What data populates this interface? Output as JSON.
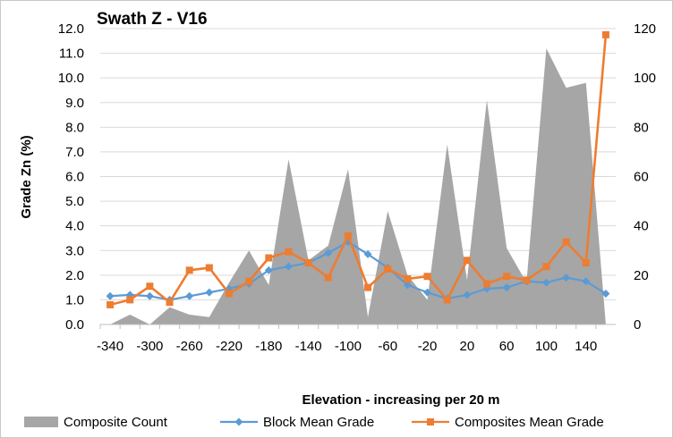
{
  "chart_data": {
    "type": "line",
    "title": "Swath Z - V16",
    "xlabel": "Elevation - increasing per 20 m",
    "ylabel": "Grade Zn (%)",
    "y2label": "",
    "ylim": [
      0,
      12
    ],
    "y2lim": [
      0,
      120
    ],
    "y_ticks": [
      "0.0",
      "1.0",
      "2.0",
      "3.0",
      "4.0",
      "5.0",
      "6.0",
      "7.0",
      "8.0",
      "9.0",
      "10.0",
      "11.0",
      "12.0"
    ],
    "y2_ticks": [
      "0",
      "20",
      "40",
      "60",
      "80",
      "100",
      "120"
    ],
    "x_ticks": [
      "-340",
      "-300",
      "-260",
      "-220",
      "-180",
      "-140",
      "-100",
      "-60",
      "-20",
      "20",
      "60",
      "100",
      "140"
    ],
    "grid": true,
    "legend_position": "bottom",
    "x": [
      -340,
      -320,
      -300,
      -280,
      -260,
      -240,
      -220,
      -200,
      -180,
      -160,
      -140,
      -120,
      -100,
      -80,
      -60,
      -40,
      -20,
      0,
      20,
      40,
      60,
      80,
      100,
      120,
      140,
      160
    ],
    "series": [
      {
        "name": "Composite Count",
        "kind": "area",
        "axis": "secondary",
        "color": "#a6a6a6",
        "values": [
          0,
          4,
          0,
          7,
          4,
          3,
          17,
          30,
          16,
          67,
          26,
          32,
          63,
          3,
          46,
          20,
          10,
          73,
          18,
          91,
          31,
          17,
          112,
          96,
          98,
          0
        ]
      },
      {
        "name": "Block Mean Grade",
        "kind": "line",
        "marker": "diamond",
        "axis": "primary",
        "color": "#5b9bd5",
        "values": [
          1.15,
          1.2,
          1.15,
          1.0,
          1.15,
          1.3,
          1.45,
          1.65,
          2.2,
          2.35,
          2.5,
          2.9,
          3.35,
          2.85,
          2.3,
          1.6,
          1.3,
          1.05,
          1.2,
          1.45,
          1.5,
          1.75,
          1.7,
          1.9,
          1.75,
          1.25
        ]
      },
      {
        "name": "Composites Mean Grade",
        "kind": "line",
        "marker": "square",
        "axis": "primary",
        "color": "#ed7d31",
        "values": [
          0.8,
          1.0,
          1.55,
          0.9,
          2.2,
          2.3,
          1.25,
          1.75,
          2.7,
          2.95,
          2.5,
          1.9,
          3.6,
          1.5,
          2.25,
          1.85,
          1.95,
          1.0,
          2.6,
          1.65,
          1.95,
          1.8,
          2.35,
          3.35,
          2.5,
          11.75
        ]
      }
    ]
  }
}
